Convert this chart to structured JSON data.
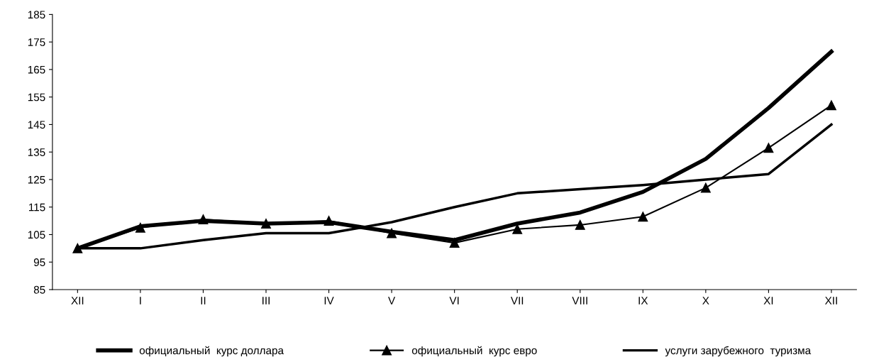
{
  "chart_data": {
    "type": "line",
    "categories": [
      "XII",
      "I",
      "II",
      "III",
      "IV",
      "V",
      "VI",
      "VII",
      "VIII",
      "IX",
      "X",
      "XI",
      "XII"
    ],
    "ylim": [
      85,
      185
    ],
    "yticks": [
      85,
      95,
      105,
      115,
      125,
      135,
      145,
      155,
      165,
      175,
      185
    ],
    "grid": false,
    "legend": "bottom",
    "line_style": "solid",
    "series": [
      {
        "name": "официальный  курс доллара",
        "color": "#000000",
        "marker": "none",
        "values": [
          100,
          108,
          110,
          109,
          109.5,
          106,
          103,
          109,
          113,
          120.5,
          132.5,
          151,
          171.5
        ]
      },
      {
        "name": "официальный  курс евро",
        "color": "#000000",
        "marker": "triangle",
        "values": [
          100,
          107.5,
          110.5,
          109,
          110,
          105.5,
          102,
          107,
          108.5,
          111.5,
          122,
          136.5,
          152
        ]
      },
      {
        "name": "услуги зарубежного  туризма",
        "color": "#000000",
        "marker": "none",
        "values": [
          100,
          100,
          103,
          105.5,
          105.5,
          109.5,
          115,
          120,
          121.5,
          123,
          125,
          127,
          145
        ]
      }
    ]
  }
}
